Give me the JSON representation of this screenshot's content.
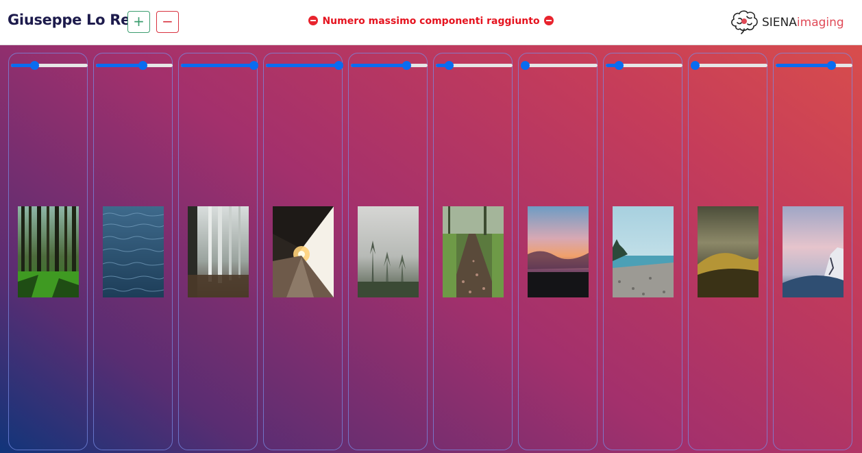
{
  "header": {
    "user_name": "Giuseppe Lo Re",
    "add_label": "+",
    "remove_label": "−",
    "warning_text": "Numero massimo componenti raggiunto",
    "logo": {
      "brand": "SIENA",
      "suffix": "imaging",
      "icon": "brain-icon"
    }
  },
  "colors": {
    "accent": "#0a6cf0",
    "add_button": "#3a9c6e",
    "remove_button": "#d8313e",
    "warning": "#e5131f",
    "title": "#1d1b4c"
  },
  "columns": [
    {
      "slider_fraction": 0.3,
      "image": "forest-trees"
    },
    {
      "slider_fraction": 0.61,
      "image": "ocean-water"
    },
    {
      "slider_fraction": 0.95,
      "image": "misty-birch-forest"
    },
    {
      "slider_fraction": 0.95,
      "image": "train-platform-sunset"
    },
    {
      "slider_fraction": 0.72,
      "image": "foggy-pine-forest"
    },
    {
      "slider_fraction": 0.17,
      "image": "forest-path"
    },
    {
      "slider_fraction": 0.05,
      "image": "sunset-clouds"
    },
    {
      "slider_fraction": 0.17,
      "image": "pebble-beach"
    },
    {
      "slider_fraction": 0.05,
      "image": "misty-hills"
    },
    {
      "slider_fraction": 0.72,
      "image": "snowy-cliff-sky"
    }
  ]
}
